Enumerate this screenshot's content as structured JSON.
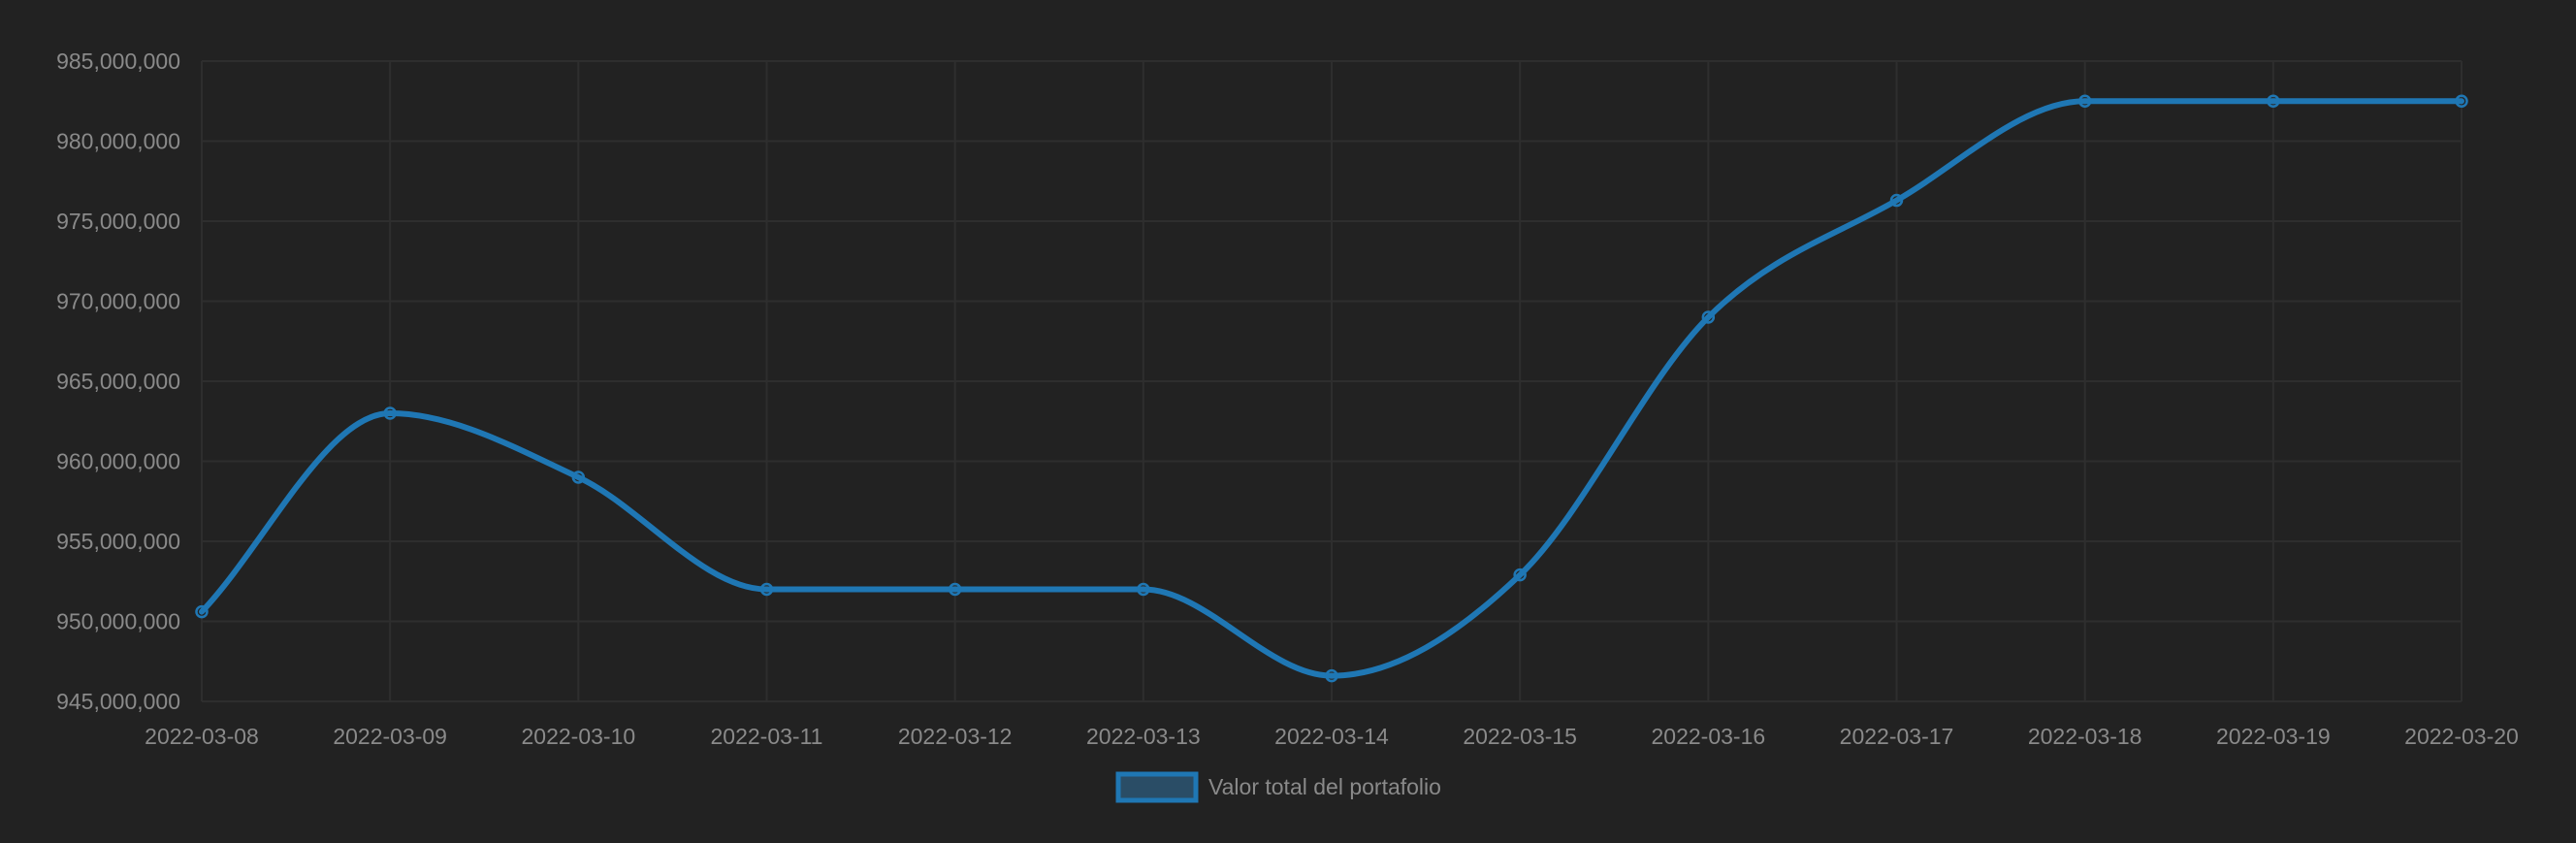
{
  "chart_data": {
    "type": "line",
    "categories": [
      "2022-03-08",
      "2022-03-09",
      "2022-03-10",
      "2022-03-11",
      "2022-03-12",
      "2022-03-13",
      "2022-03-14",
      "2022-03-15",
      "2022-03-16",
      "2022-03-17",
      "2022-03-18",
      "2022-03-19",
      "2022-03-20"
    ],
    "series": [
      {
        "name": "Valor total del portafolio",
        "color": "#1f77b4",
        "values": [
          950600000,
          963000000,
          959000000,
          952000000,
          952000000,
          952000000,
          946600000,
          952900000,
          969000000,
          976300000,
          982500000,
          982500000,
          982500000
        ]
      }
    ],
    "yticks": [
      "985,000,000",
      "980,000,000",
      "975,000,000",
      "970,000,000",
      "965,000,000",
      "960,000,000",
      "955,000,000",
      "950,000,000",
      "945,000,000"
    ],
    "ytick_values": [
      985000000,
      980000000,
      975000000,
      970000000,
      965000000,
      960000000,
      955000000,
      950000000,
      945000000
    ],
    "ylim": [
      945000000,
      985000000
    ],
    "title": "",
    "xlabel": "",
    "ylabel": "",
    "grid": true,
    "legend": "bottom-center",
    "colors": {
      "background": "#222222",
      "grid": "#2e2e2e",
      "text": "#8a8a8a"
    }
  }
}
